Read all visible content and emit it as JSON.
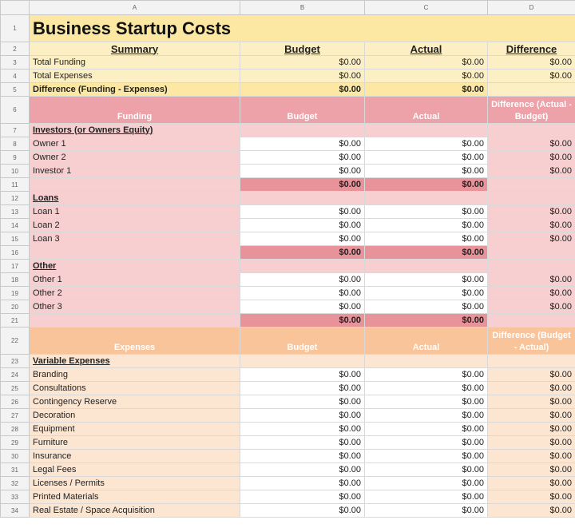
{
  "columns": [
    "",
    "A",
    "B",
    "C",
    "D"
  ],
  "title": "Business Startup Costs",
  "summary": {
    "headers": [
      "Summary",
      "Budget",
      "Actual",
      "Difference"
    ],
    "rows": [
      {
        "label": "Total Funding",
        "budget": "$0.00",
        "actual": "$0.00",
        "diff": "$0.00"
      },
      {
        "label": "Total Expenses",
        "budget": "$0.00",
        "actual": "$0.00",
        "diff": "$0.00"
      },
      {
        "label": "Difference (Funding - Expenses)",
        "budget": "$0.00",
        "actual": "$0.00"
      }
    ]
  },
  "funding": {
    "headers": [
      "Funding",
      "Budget",
      "Actual",
      "Difference (Actual - Budget)"
    ],
    "groups": [
      {
        "title": "Investors (or Owners Equity)",
        "items": [
          {
            "label": "Owner 1",
            "budget": "$0.00",
            "actual": "$0.00",
            "diff": "$0.00"
          },
          {
            "label": "Owner 2",
            "budget": "$0.00",
            "actual": "$0.00",
            "diff": "$0.00"
          },
          {
            "label": "Investor 1",
            "budget": "$0.00",
            "actual": "$0.00",
            "diff": "$0.00"
          }
        ],
        "total_budget": "$0.00",
        "total_actual": "$0.00"
      },
      {
        "title": "Loans",
        "items": [
          {
            "label": "Loan 1",
            "budget": "$0.00",
            "actual": "$0.00",
            "diff": "$0.00"
          },
          {
            "label": "Loan 2",
            "budget": "$0.00",
            "actual": "$0.00",
            "diff": "$0.00"
          },
          {
            "label": "Loan 3",
            "budget": "$0.00",
            "actual": "$0.00",
            "diff": "$0.00"
          }
        ],
        "total_budget": "$0.00",
        "total_actual": "$0.00"
      },
      {
        "title": "Other",
        "items": [
          {
            "label": "Other 1",
            "budget": "$0.00",
            "actual": "$0.00",
            "diff": "$0.00"
          },
          {
            "label": "Other 2",
            "budget": "$0.00",
            "actual": "$0.00",
            "diff": "$0.00"
          },
          {
            "label": "Other 3",
            "budget": "$0.00",
            "actual": "$0.00",
            "diff": "$0.00"
          }
        ],
        "total_budget": "$0.00",
        "total_actual": "$0.00"
      }
    ]
  },
  "expenses": {
    "headers": [
      "Expenses",
      "Budget",
      "Actual",
      "Difference (Budget - Actual)"
    ],
    "group_title": "Variable Expenses",
    "items": [
      {
        "label": "Branding",
        "budget": "$0.00",
        "actual": "$0.00",
        "diff": "$0.00"
      },
      {
        "label": "Consultations",
        "budget": "$0.00",
        "actual": "$0.00",
        "diff": "$0.00"
      },
      {
        "label": "Contingency Reserve",
        "budget": "$0.00",
        "actual": "$0.00",
        "diff": "$0.00"
      },
      {
        "label": "Decoration",
        "budget": "$0.00",
        "actual": "$0.00",
        "diff": "$0.00"
      },
      {
        "label": "Equipment",
        "budget": "$0.00",
        "actual": "$0.00",
        "diff": "$0.00"
      },
      {
        "label": "Furniture",
        "budget": "$0.00",
        "actual": "$0.00",
        "diff": "$0.00"
      },
      {
        "label": "Insurance",
        "budget": "$0.00",
        "actual": "$0.00",
        "diff": "$0.00"
      },
      {
        "label": "Legal Fees",
        "budget": "$0.00",
        "actual": "$0.00",
        "diff": "$0.00"
      },
      {
        "label": "Licenses / Permits",
        "budget": "$0.00",
        "actual": "$0.00",
        "diff": "$0.00"
      },
      {
        "label": "Printed Materials",
        "budget": "$0.00",
        "actual": "$0.00",
        "diff": "$0.00"
      },
      {
        "label": "Real Estate / Space Acquisition",
        "budget": "$0.00",
        "actual": "$0.00",
        "diff": "$0.00"
      }
    ]
  },
  "row_numbers": [
    "1",
    "2",
    "3",
    "4",
    "5",
    "6",
    "7",
    "8",
    "9",
    "10",
    "11",
    "12",
    "13",
    "14",
    "15",
    "16",
    "17",
    "18",
    "19",
    "20",
    "21",
    "22",
    "23",
    "24",
    "25",
    "26",
    "27",
    "28",
    "29",
    "30",
    "31",
    "32",
    "33",
    "34"
  ],
  "colors": {
    "title_bg": "#fce8a3",
    "funding_header": "#eda1a8",
    "funding_total": "#e89299",
    "expenses_header": "#f9c49a"
  }
}
